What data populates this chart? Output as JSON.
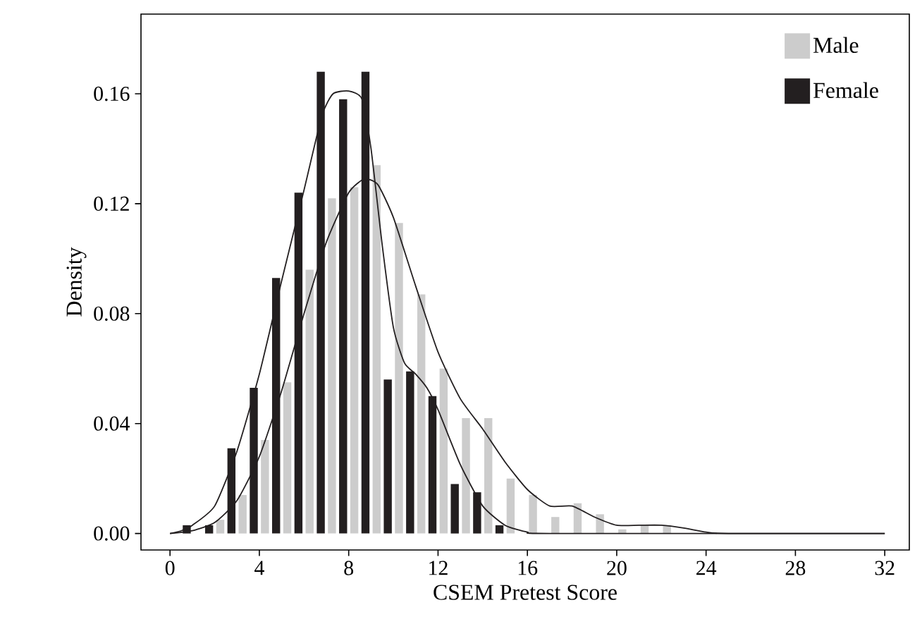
{
  "chart_data": {
    "type": "bar",
    "xlabel": "CSEM Pretest Score",
    "ylabel": "Density",
    "xlim": [
      -1.3,
      33.1
    ],
    "ylim": [
      -0.006,
      0.189
    ],
    "xticks": [
      0,
      4,
      8,
      12,
      16,
      20,
      24,
      28,
      32
    ],
    "yticks": [
      {
        "value": 0,
        "label": "0.00"
      },
      {
        "value": 0.04,
        "label": "0.04"
      },
      {
        "value": 0.08,
        "label": "0.08"
      },
      {
        "value": 0.12,
        "label": "0.12"
      },
      {
        "value": 0.16,
        "label": "0.16"
      }
    ],
    "legend": "top right",
    "series": [
      {
        "name": "Male",
        "color": "#cccccc",
        "x": [
          2,
          3,
          4,
          5,
          6,
          7,
          8,
          9,
          10,
          11,
          12,
          13,
          14,
          15,
          16,
          17,
          18,
          19,
          20,
          21,
          22
        ],
        "values": [
          0.005,
          0.014,
          0.034,
          0.055,
          0.096,
          0.122,
          0.126,
          0.134,
          0.113,
          0.087,
          0.06,
          0.042,
          0.042,
          0.02,
          0.014,
          0.006,
          0.011,
          0.007,
          0.0015,
          0.003,
          0.003
        ]
      },
      {
        "name": "Female",
        "color": "#231f20",
        "x": [
          1,
          2,
          3,
          4,
          5,
          6,
          7,
          8,
          9,
          10,
          11,
          12,
          13,
          14,
          15
        ],
        "values": [
          0.003,
          0.003,
          0.031,
          0.053,
          0.093,
          0.124,
          0.168,
          0.158,
          0.168,
          0.056,
          0.059,
          0.05,
          0.018,
          0.015,
          0.003
        ]
      },
      {
        "type": "line",
        "color": "#231f20",
        "x": [
          0,
          1,
          2,
          3,
          4,
          5,
          6,
          7,
          8,
          8.7,
          9.3,
          10,
          11,
          12,
          13,
          14,
          15,
          16,
          17,
          18,
          19,
          20,
          21,
          22,
          23,
          24,
          25,
          32
        ],
        "values": [
          0,
          0.001,
          0.004,
          0.012,
          0.028,
          0.052,
          0.08,
          0.106,
          0.124,
          0.129,
          0.127,
          0.115,
          0.09,
          0.066,
          0.049,
          0.038,
          0.026,
          0.016,
          0.01,
          0.01,
          0.006,
          0.003,
          0.003,
          0.003,
          0.002,
          0.0005,
          0,
          0
        ]
      },
      {
        "type": "line",
        "color": "#231f20",
        "x": [
          0,
          0.5,
          1,
          2,
          3,
          4,
          5,
          6,
          6.8,
          7.3,
          8,
          8.6,
          9,
          9.5,
          10,
          10.5,
          11,
          11.5,
          12,
          13,
          14,
          15,
          16,
          17,
          32
        ],
        "values": [
          0,
          0.001,
          0.003,
          0.01,
          0.03,
          0.058,
          0.092,
          0.125,
          0.152,
          0.16,
          0.161,
          0.158,
          0.14,
          0.105,
          0.075,
          0.062,
          0.058,
          0.053,
          0.045,
          0.025,
          0.01,
          0.003,
          0.0005,
          0,
          0
        ]
      }
    ]
  }
}
